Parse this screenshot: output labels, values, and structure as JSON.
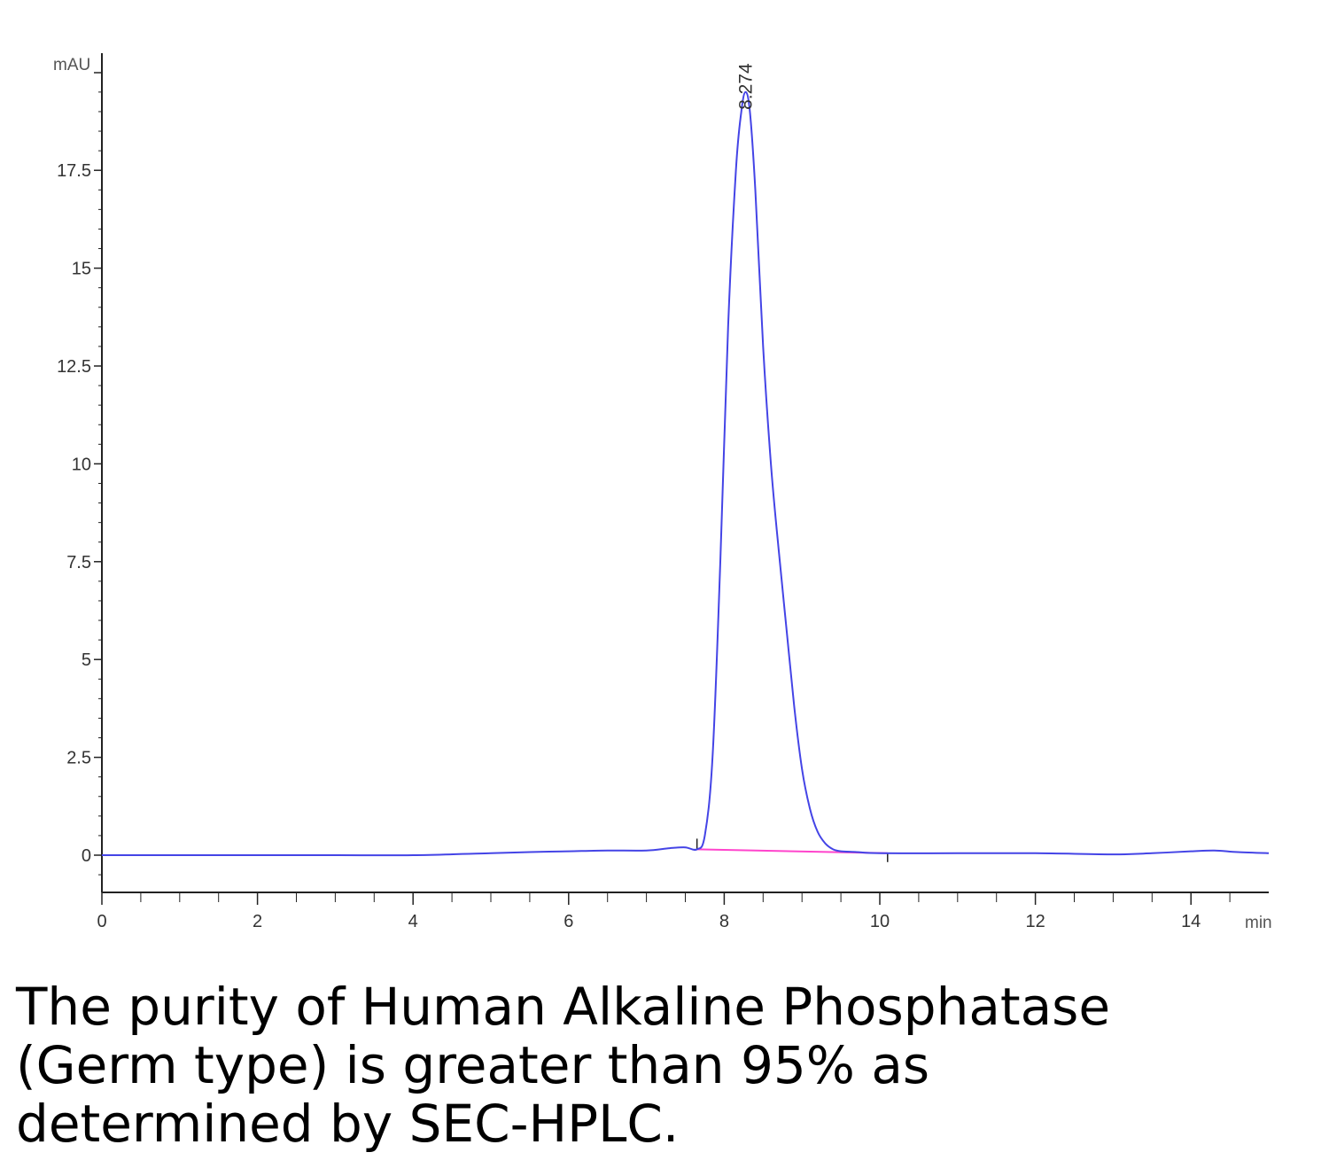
{
  "chart_data": {
    "type": "line",
    "y_unit": "mAU",
    "x_unit": "min",
    "xlim": [
      0,
      15
    ],
    "ylim": [
      -1.9,
      20.5
    ],
    "x_ticks": [
      0,
      2,
      4,
      6,
      8,
      10,
      12,
      14
    ],
    "x_tick_labels": [
      "0",
      "2",
      "4",
      "6",
      "8",
      "10",
      "12",
      "14"
    ],
    "y_ticks": [
      0,
      2.5,
      5,
      7.5,
      10,
      12.5,
      15,
      17.5
    ],
    "y_tick_labels": [
      "0",
      "2.5",
      "5",
      "7.5",
      "10",
      "12.5",
      "15",
      "17.5"
    ],
    "peak": {
      "retention_time": 8.274,
      "label": "8.274",
      "height": 19.5
    },
    "integration_baseline": {
      "x": [
        7.65,
        10.1
      ],
      "y": [
        0.15,
        0.05
      ]
    },
    "series": [
      {
        "color": "#4444e6",
        "x": [
          0,
          1,
          2,
          3,
          4,
          5,
          5.5,
          6,
          6.5,
          7,
          7.3,
          7.5,
          7.65,
          7.75,
          7.85,
          7.95,
          8.05,
          8.15,
          8.22,
          8.274,
          8.33,
          8.4,
          8.5,
          8.6,
          8.7,
          8.8,
          8.9,
          9.0,
          9.1,
          9.2,
          9.3,
          9.4,
          9.5,
          9.7,
          10,
          11,
          12,
          13,
          13.5,
          14,
          14.3,
          14.6,
          15
        ],
        "y": [
          0.0,
          0.0,
          0.0,
          0.0,
          0.0,
          0.05,
          0.08,
          0.1,
          0.12,
          0.12,
          0.18,
          0.2,
          0.15,
          0.5,
          2.5,
          7.5,
          13.5,
          17.5,
          19.0,
          19.5,
          19.0,
          17.0,
          13.0,
          10.0,
          7.8,
          5.8,
          3.8,
          2.2,
          1.2,
          0.6,
          0.3,
          0.15,
          0.1,
          0.08,
          0.05,
          0.05,
          0.05,
          0.02,
          0.05,
          0.1,
          0.12,
          0.08,
          0.05
        ]
      }
    ]
  },
  "caption": {
    "line1": "The purity of Human Alkaline Phosphatase",
    "line2": "(Germ type) is greater than 95% as",
    "line3": "determined by SEC-HPLC."
  }
}
